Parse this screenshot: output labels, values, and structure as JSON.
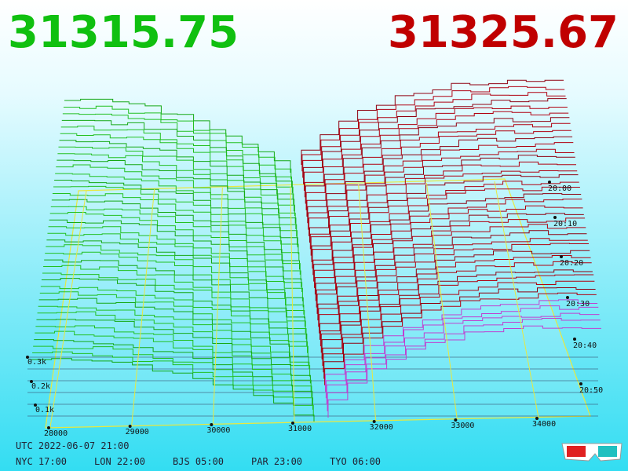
{
  "bid_price": "31315.75",
  "ask_price": "31325.67",
  "price_ticks": [
    28000,
    29000,
    30000,
    31000,
    32000,
    33000,
    34000
  ],
  "time_labels": [
    "20:00",
    "20:10",
    "20:20",
    "20:30",
    "20:40",
    "20:50"
  ],
  "depth_labels": [
    "0.3k",
    "0.2k",
    "0.1k"
  ],
  "footer": {
    "utc": "UTC 2022-06-07 21:00",
    "zones": [
      "NYC 17:00",
      "LON 22:00",
      "BJS 05:00",
      "PAR 23:00",
      "TYO 06:00"
    ]
  }
}
